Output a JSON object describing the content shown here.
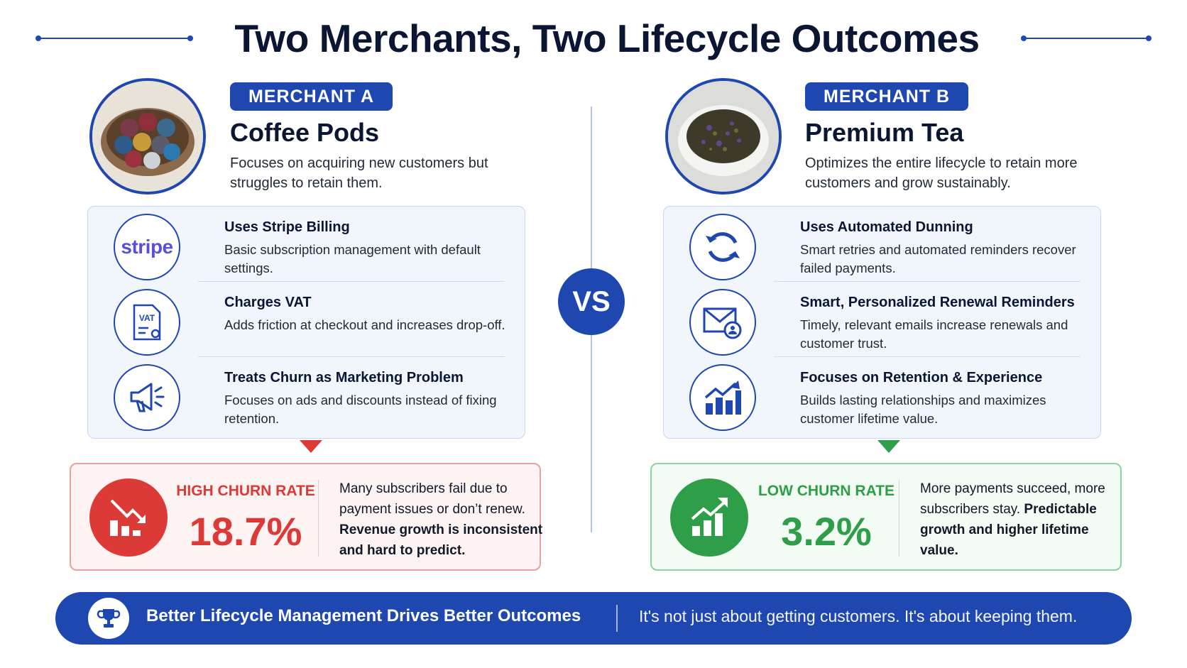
{
  "title": "Two Merchants, Two Lifecycle Outcomes",
  "vs_label": "VS",
  "colors": {
    "primary_blue": "#1f47b0",
    "churn_red": "#dc3a36",
    "churn_green": "#2f9e48"
  },
  "merchant_a": {
    "badge": "MERCHANT A",
    "name": "Coffee Pods",
    "description": "Focuses on acquiring new customers but struggles to retain them.",
    "photo": "coffee-pods-bowl-image",
    "features": [
      {
        "icon": "stripe-logo",
        "title": "Uses Stripe Billing",
        "description": "Basic subscription management with default settings."
      },
      {
        "icon": "vat-document-icon",
        "title": "Charges VAT",
        "description": "Adds friction at checkout and increases drop-off."
      },
      {
        "icon": "megaphone-icon",
        "title": "Treats Churn as Marketing Problem",
        "description": "Focuses on ads and discounts instead of fixing retention."
      }
    ],
    "outcome": {
      "icon": "chart-down-icon",
      "label": "HIGH CHURN RATE",
      "value": "18.7%",
      "text": "Many subscribers fail due to payment issues or don’t renew.",
      "bold_text": "Revenue growth is inconsistent and hard to predict."
    }
  },
  "merchant_b": {
    "badge": "MERCHANT B",
    "name": "Premium Tea",
    "description": "Optimizes the entire lifecycle to retain more customers and grow sustainably.",
    "photo": "tea-leaves-bowl-image",
    "features": [
      {
        "icon": "refresh-cycle-icon",
        "title": "Uses Automated Dunning",
        "description": "Smart retries and automated reminders recover failed payments."
      },
      {
        "icon": "envelope-user-icon",
        "title": "Smart, Personalized Renewal Reminders",
        "description": "Timely, relevant emails increase renewals and customer trust."
      },
      {
        "icon": "growth-chart-icon",
        "title": "Focuses on Retention & Experience",
        "description": "Builds lasting relationships and maximizes customer lifetime value."
      }
    ],
    "outcome": {
      "icon": "chart-up-icon",
      "label": "LOW CHURN RATE",
      "value": "3.2%",
      "text": "More payments succeed, more subscribers stay.",
      "bold_text": "Predictable growth and higher lifetime value."
    }
  },
  "stripe_logo_text": "stripe",
  "vat_icon_text": "VAT",
  "banner": {
    "icon": "trophy-icon",
    "title": "Better Lifecycle Management Drives Better Outcomes",
    "text": "It's not just about getting customers. It's about keeping them."
  }
}
